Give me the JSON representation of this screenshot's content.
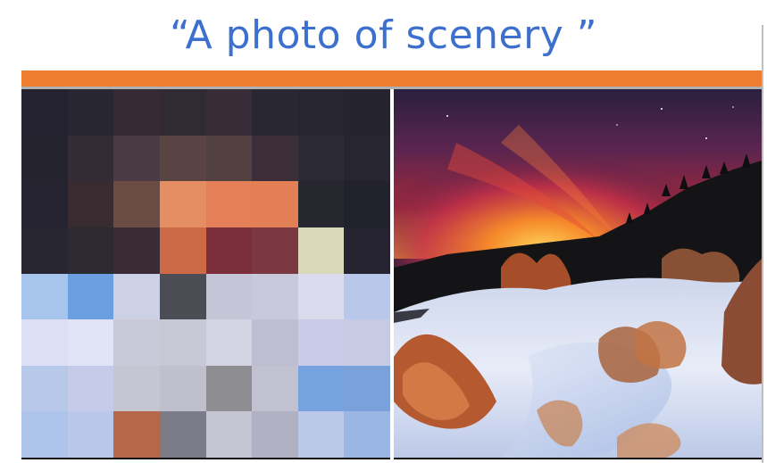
{
  "title": "“A photo of scenery ”",
  "colors": {
    "title": "#3d6fcf",
    "bar": "#ee7d2f"
  },
  "pixel_grid_colors": [
    [
      "#23222e",
      "#282731",
      "#352a35",
      "#302a35",
      "#382c38",
      "#292731",
      "#272630",
      "#25242e"
    ],
    [
      "#24232e",
      "#332c35",
      "#4a3a41",
      "#5a4443",
      "#523f40",
      "#3b2e39",
      "#2c2a34",
      "#262530"
    ],
    [
      "#252430",
      "#382c31",
      "#6b4c44",
      "#e68e63",
      "#e47f57",
      "#e27f55",
      "#272730",
      "#22222c"
    ],
    [
      "#272631",
      "#2d2a32",
      "#3a2c34",
      "#cc6a48",
      "#7d2e3b",
      "#7c3840",
      "#dad9b8",
      "#252430"
    ],
    [
      "#a7c5ec",
      "#6c9ee2",
      "#cdd1e5",
      "#4c4c55",
      "#c5c5d7",
      "#c9c9dc",
      "#dbdbee",
      "#b8c7ea"
    ],
    [
      "#dcdff5",
      "#e1e3f7",
      "#c9c9da",
      "#c7c7d6",
      "#d3d3e3",
      "#bfbdd1",
      "#c9cbe7",
      "#c6cbe3"
    ],
    [
      "#b7c8e8",
      "#c7cbea",
      "#c5c6d2",
      "#c0c0cc",
      "#8e8e92",
      "#c2c1d1",
      "#76a3e0",
      "#7aa1da"
    ],
    [
      "#afc4ea",
      "#b9c7e8",
      "#b6674a",
      "#7c7c88",
      "#c5c5d4",
      "#b1b1c4",
      "#bcc8e7",
      "#9ab6e2"
    ]
  ]
}
